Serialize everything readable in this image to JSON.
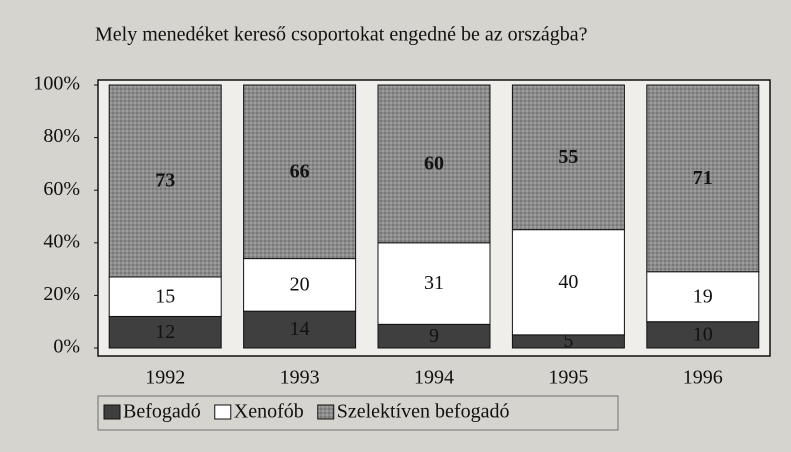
{
  "chart_data": {
    "type": "stacked_bar",
    "title": "Mely menedéket kereső csoportokat engedné be az országba?",
    "categories": [
      "1992",
      "1993",
      "1994",
      "1995",
      "1996"
    ],
    "series": [
      {
        "name": "Befogadó",
        "color": "#3f3f3f",
        "values": [
          12,
          14,
          9,
          5,
          10
        ]
      },
      {
        "name": "Xenofób",
        "color": "#ffffff",
        "values": [
          15,
          20,
          31,
          40,
          19
        ]
      },
      {
        "name": "Szelektíven befogadó",
        "color": "#8c8c8c",
        "values": [
          73,
          66,
          60,
          55,
          71
        ]
      }
    ],
    "ylim": [
      0,
      100
    ],
    "yticks": [
      {
        "value": 0,
        "label": "0%"
      },
      {
        "value": 20,
        "label": "20%"
      },
      {
        "value": 40,
        "label": "40%"
      },
      {
        "value": 60,
        "label": "60%"
      },
      {
        "value": 80,
        "label": "80%"
      },
      {
        "value": 100,
        "label": "100%"
      }
    ],
    "legend": "bottom"
  }
}
